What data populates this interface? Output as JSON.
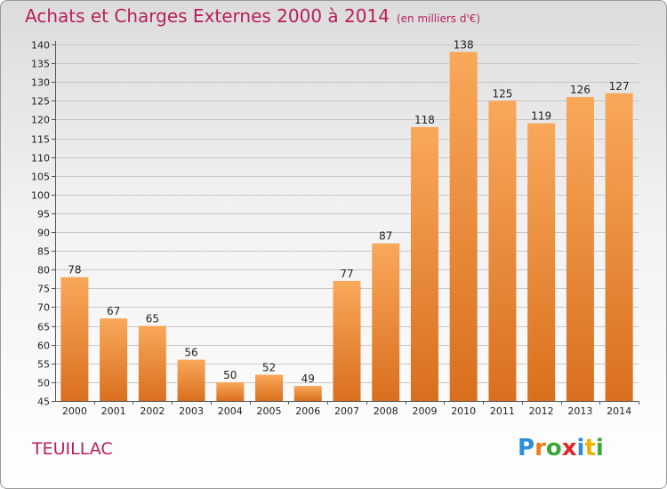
{
  "title": "Achats et Charges Externes 2000 à 2014",
  "unit_label": "(en milliers d'€)",
  "place": "TEUILLAC",
  "logo": {
    "text": "Proxiti",
    "letters": [
      {
        "ch": "P",
        "color": "#2a8fd6"
      },
      {
        "ch": "r",
        "color": "#f07b1a"
      },
      {
        "ch": "o",
        "color": "#3aa63a"
      },
      {
        "ch": "x",
        "color": "#e0262a"
      },
      {
        "ch": "i",
        "color": "#2a8fd6"
      },
      {
        "ch": "t",
        "color": "#f0b000"
      },
      {
        "ch": "i",
        "color": "#3aa63a"
      }
    ]
  },
  "colors": {
    "title": "#b81e5c",
    "bar_top": "#f9a85a",
    "bar_bottom": "#d96f1e",
    "grid": "#c8c8c8"
  },
  "chart_data": {
    "type": "bar",
    "categories": [
      "2000",
      "2001",
      "2002",
      "2003",
      "2004",
      "2005",
      "2006",
      "2007",
      "2008",
      "2009",
      "2010",
      "2011",
      "2012",
      "2013",
      "2014"
    ],
    "values": [
      78,
      67,
      65,
      56,
      50,
      52,
      49,
      77,
      87,
      118,
      138,
      125,
      119,
      126,
      127
    ],
    "ylim": [
      45,
      140
    ],
    "ytick_step": 5,
    "grid": true
  }
}
